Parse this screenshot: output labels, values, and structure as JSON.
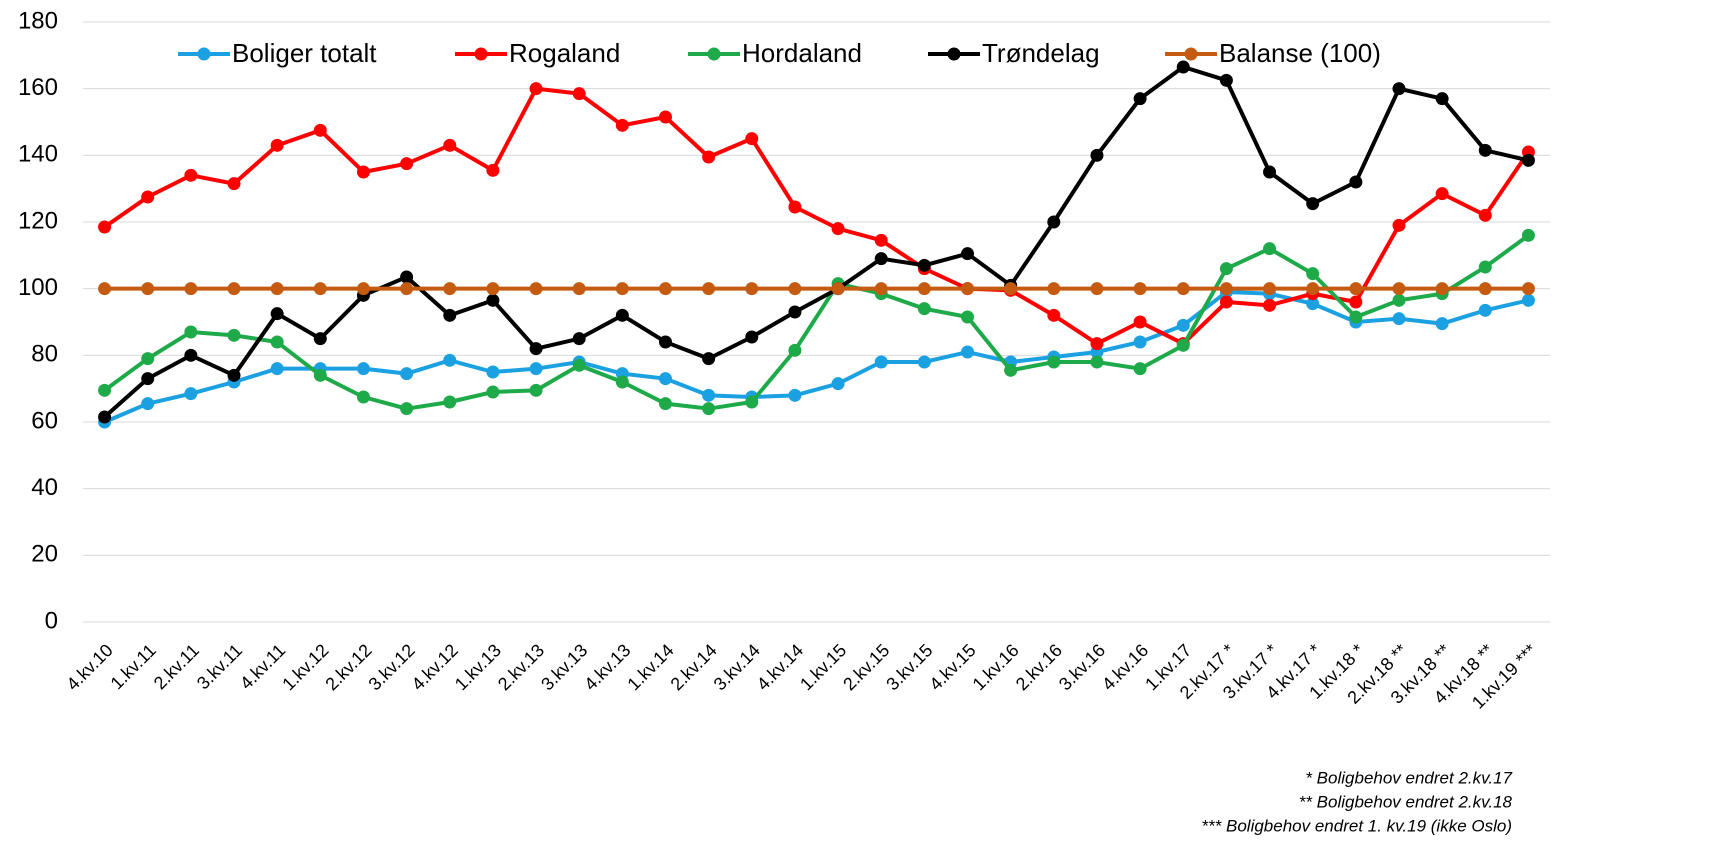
{
  "chart_data": {
    "type": "line",
    "categories": [
      "4.kv.10",
      "1.kv.11",
      "2.kv.11",
      "3.kv.11",
      "4.kv.11",
      "1.kv.12",
      "2.kv.12",
      "3.kv.12",
      "4.kv.12",
      "1.kv.13",
      "2.kv.13",
      "3.kv.13",
      "4.kv.13",
      "1.kv.14",
      "2.kv.14",
      "3.kv.14",
      "4.kv.14",
      "1.kv.15",
      "2.kv.15",
      "3.kv.15",
      "4.kv.15",
      "1.kv.16",
      "2.kv.16",
      "3.kv.16",
      "4.kv.16",
      "1.kv.17",
      "2.kv.17 *",
      "3.kv.17 *",
      "4.kv.17 *",
      "1.kv.18 *",
      "2.kv.18 **",
      "3.kv.18 **",
      "4.kv.18 **",
      "1.kv.19 ***"
    ],
    "series": [
      {
        "name": "Boliger totalt",
        "color": "#1ba1e2",
        "values": [
          60,
          65.5,
          68.5,
          72,
          76,
          76,
          76,
          74.5,
          78.5,
          75,
          76,
          78,
          74.5,
          73,
          68,
          67.5,
          68,
          71.5,
          78,
          78,
          81,
          78,
          79.5,
          81,
          84,
          89,
          99,
          98.5,
          95.5,
          90,
          91,
          89.5,
          93.5,
          96.5
        ]
      },
      {
        "name": "Rogaland",
        "color": "#ff0000",
        "values": [
          118.5,
          127.5,
          134,
          131.5,
          143,
          147.5,
          135,
          137.5,
          143,
          135.5,
          160,
          158.5,
          149,
          151.5,
          139.5,
          145,
          124.5,
          118,
          114.5,
          106,
          100,
          99.5,
          92,
          83.5,
          90,
          83.5,
          96,
          95,
          98.5,
          96,
          119,
          128.5,
          122,
          141
        ]
      },
      {
        "name": "Hordaland",
        "color": "#1faa4a",
        "values": [
          69.5,
          79,
          87,
          86,
          84,
          74,
          67.5,
          64,
          66,
          69,
          69.5,
          77,
          72,
          65.5,
          64,
          66,
          81.5,
          101.5,
          98.5,
          94,
          91.5,
          75.5,
          78,
          78,
          76,
          83,
          106,
          112,
          104.5,
          91.5,
          96.5,
          98.5,
          106.5,
          116
        ]
      },
      {
        "name": "Trøndelag",
        "color": "#000000",
        "values": [
          61.5,
          73,
          80,
          74,
          92.5,
          85,
          98,
          103.5,
          92,
          96.5,
          82,
          85,
          92,
          84,
          79,
          85.5,
          93,
          100,
          109,
          107,
          110.5,
          101,
          120,
          140,
          157,
          166.5,
          162.5,
          135,
          125.5,
          132,
          160,
          157,
          141.5,
          138.5
        ]
      },
      {
        "name": "Balanse (100)",
        "color": "#c55a11",
        "values": [
          100,
          100,
          100,
          100,
          100,
          100,
          100,
          100,
          100,
          100,
          100,
          100,
          100,
          100,
          100,
          100,
          100,
          100,
          100,
          100,
          100,
          100,
          100,
          100,
          100,
          100,
          100,
          100,
          100,
          100,
          100,
          100,
          100,
          100
        ]
      }
    ],
    "ylim": [
      0,
      180
    ],
    "yticks": [
      0,
      20,
      40,
      60,
      80,
      100,
      120,
      140,
      160,
      180
    ],
    "grid": true,
    "legend": "top",
    "notes": [
      "*  Boligbehov endret 2.kv.17",
      "** Boligbehov endret 2.kv.18",
      "*** Boligbehov endret 1. kv.19 (ikke Oslo)"
    ]
  }
}
